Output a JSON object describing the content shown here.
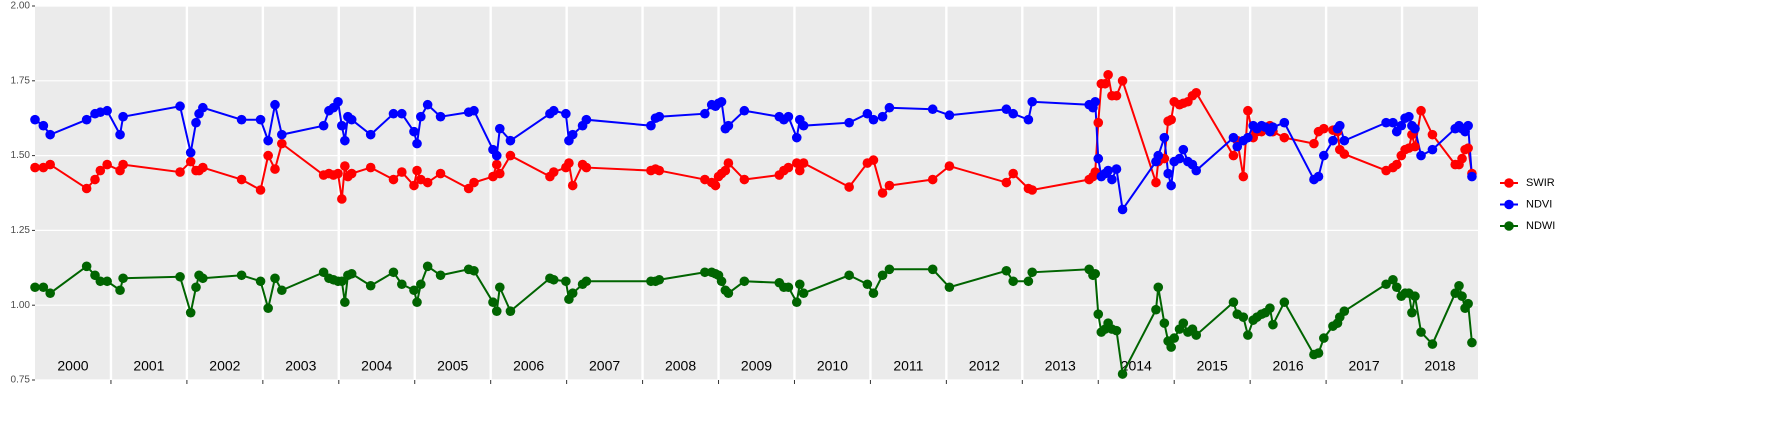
{
  "chart_data": {
    "type": "line",
    "xlim": [
      2000,
      2019
    ],
    "xticks": [
      2001,
      2002,
      2003,
      2004,
      2005,
      2006,
      2007,
      2008,
      2009,
      2010,
      2011,
      2012,
      2013,
      2014,
      2015,
      2016,
      2017,
      2018
    ],
    "year_labels": [
      "2000",
      "2001",
      "2002",
      "2003",
      "2004",
      "2005",
      "2006",
      "2007",
      "2008",
      "2009",
      "2010",
      "2011",
      "2012",
      "2013",
      "2014",
      "2015",
      "2016",
      "2017",
      "2018"
    ],
    "ylim": [
      0.75,
      2.0
    ],
    "yticks": [
      {
        "value": 0.75,
        "label": "0.75"
      },
      {
        "value": 1.0,
        "label": "1.00"
      },
      {
        "value": 1.25,
        "label": "1.25"
      },
      {
        "value": 1.5,
        "label": "1.50"
      },
      {
        "value": 1.75,
        "label": "1.75"
      },
      {
        "value": 2.0,
        "label": "2.00"
      }
    ],
    "grid": true,
    "legend": "right",
    "x": [
      2000.0,
      2000.11,
      2000.2,
      2000.68,
      2000.79,
      2000.86,
      2000.95,
      2001.12,
      2001.16,
      2001.91,
      2002.05,
      2002.12,
      2002.16,
      2002.21,
      2002.72,
      2002.97,
      2003.07,
      2003.16,
      2003.25,
      2003.8,
      2003.87,
      2003.93,
      2003.99,
      2004.04,
      2004.08,
      2004.12,
      2004.17,
      2004.42,
      2004.72,
      2004.83,
      2004.99,
      2005.03,
      2005.08,
      2005.17,
      2005.34,
      2005.71,
      2005.78,
      2006.03,
      2006.08,
      2006.12,
      2006.26,
      2006.78,
      2006.83,
      2006.99,
      2007.03,
      2007.08,
      2007.21,
      2007.26,
      2008.11,
      2008.17,
      2008.22,
      2008.82,
      2008.91,
      2008.96,
      2009.0,
      2009.04,
      2009.09,
      2009.13,
      2009.34,
      2009.8,
      2009.86,
      2009.92,
      2010.03,
      2010.07,
      2010.12,
      2010.72,
      2010.96,
      2011.04,
      2011.16,
      2011.25,
      2011.82,
      2012.04,
      2012.79,
      2012.88,
      2013.08,
      2013.13,
      2013.88,
      2013.93,
      2013.96,
      2014.0,
      2014.04,
      2014.09,
      2014.13,
      2014.18,
      2014.24,
      2014.32,
      2014.76,
      2014.79,
      2014.87,
      2014.92,
      2014.96,
      2015.0,
      2015.07,
      2015.12,
      2015.18,
      2015.24,
      2015.29,
      2015.78,
      2015.83,
      2015.91,
      2015.97,
      2016.04,
      2016.09,
      2016.15,
      2016.2,
      2016.26,
      2016.3,
      2016.45,
      2016.84,
      2016.9,
      2016.97,
      2017.09,
      2017.15,
      2017.18,
      2017.24,
      2017.79,
      2017.88,
      2017.93,
      2017.99,
      2018.04,
      2018.09,
      2018.13,
      2018.17,
      2018.25,
      2018.4,
      2018.7,
      2018.75,
      2018.79,
      2018.83,
      2018.87,
      2018.92
    ],
    "series": [
      {
        "name": "SWIR",
        "color": "#ff0000",
        "values": [
          1.46,
          1.46,
          1.47,
          1.39,
          1.42,
          1.45,
          1.47,
          1.45,
          1.47,
          1.445,
          1.48,
          1.45,
          1.45,
          1.46,
          1.42,
          1.385,
          1.5,
          1.455,
          1.54,
          1.435,
          1.44,
          1.435,
          1.44,
          1.355,
          1.465,
          1.43,
          1.44,
          1.46,
          1.42,
          1.445,
          1.4,
          1.45,
          1.42,
          1.41,
          1.44,
          1.39,
          1.41,
          1.43,
          1.47,
          1.44,
          1.5,
          1.43,
          1.445,
          1.46,
          1.475,
          1.4,
          1.47,
          1.46,
          1.45,
          1.455,
          1.45,
          1.42,
          1.41,
          1.4,
          1.43,
          1.44,
          1.45,
          1.475,
          1.42,
          1.435,
          1.45,
          1.46,
          1.475,
          1.45,
          1.475,
          1.395,
          1.475,
          1.485,
          1.375,
          1.4,
          1.42,
          1.465,
          1.41,
          1.44,
          1.39,
          1.385,
          1.42,
          1.43,
          1.445,
          1.61,
          1.74,
          1.74,
          1.77,
          1.7,
          1.7,
          1.75,
          1.41,
          1.48,
          1.49,
          1.615,
          1.62,
          1.68,
          1.67,
          1.675,
          1.68,
          1.7,
          1.71,
          1.5,
          1.55,
          1.43,
          1.65,
          1.56,
          1.58,
          1.58,
          1.59,
          1.6,
          1.58,
          1.56,
          1.54,
          1.58,
          1.59,
          1.585,
          1.58,
          1.52,
          1.505,
          1.45,
          1.46,
          1.47,
          1.5,
          1.52,
          1.525,
          1.57,
          1.53,
          1.65,
          1.57,
          1.47,
          1.47,
          1.49,
          1.52,
          1.525,
          1.44
        ]
      },
      {
        "name": "NDVI",
        "color": "#0000ff",
        "values": [
          1.62,
          1.6,
          1.57,
          1.62,
          1.64,
          1.645,
          1.65,
          1.57,
          1.63,
          1.665,
          1.51,
          1.61,
          1.64,
          1.66,
          1.62,
          1.62,
          1.55,
          1.67,
          1.57,
          1.6,
          1.65,
          1.66,
          1.68,
          1.6,
          1.55,
          1.63,
          1.62,
          1.57,
          1.64,
          1.64,
          1.58,
          1.54,
          1.63,
          1.67,
          1.63,
          1.645,
          1.65,
          1.52,
          1.5,
          1.59,
          1.55,
          1.64,
          1.65,
          1.64,
          1.55,
          1.57,
          1.6,
          1.62,
          1.6,
          1.625,
          1.63,
          1.64,
          1.67,
          1.665,
          1.675,
          1.68,
          1.59,
          1.6,
          1.65,
          1.63,
          1.62,
          1.63,
          1.56,
          1.62,
          1.6,
          1.61,
          1.64,
          1.62,
          1.63,
          1.66,
          1.655,
          1.635,
          1.655,
          1.64,
          1.62,
          1.68,
          1.67,
          1.66,
          1.68,
          1.49,
          1.43,
          1.44,
          1.45,
          1.42,
          1.455,
          1.32,
          1.48,
          1.5,
          1.56,
          1.44,
          1.4,
          1.48,
          1.49,
          1.52,
          1.48,
          1.47,
          1.45,
          1.56,
          1.53,
          1.55,
          1.56,
          1.6,
          1.59,
          1.6,
          1.595,
          1.58,
          1.595,
          1.61,
          1.42,
          1.43,
          1.5,
          1.55,
          1.59,
          1.6,
          1.55,
          1.61,
          1.61,
          1.58,
          1.6,
          1.625,
          1.63,
          1.6,
          1.59,
          1.5,
          1.52,
          1.59,
          1.6,
          1.59,
          1.58,
          1.6,
          1.43
        ]
      },
      {
        "name": "NDWI",
        "color": "#006400",
        "values": [
          1.06,
          1.06,
          1.04,
          1.13,
          1.1,
          1.08,
          1.08,
          1.05,
          1.09,
          1.095,
          0.975,
          1.06,
          1.1,
          1.09,
          1.1,
          1.08,
          0.99,
          1.09,
          1.05,
          1.11,
          1.09,
          1.085,
          1.08,
          1.08,
          1.01,
          1.1,
          1.105,
          1.065,
          1.11,
          1.07,
          1.05,
          1.01,
          1.07,
          1.13,
          1.1,
          1.12,
          1.115,
          1.01,
          0.98,
          1.06,
          0.98,
          1.09,
          1.085,
          1.08,
          1.02,
          1.04,
          1.07,
          1.08,
          1.08,
          1.08,
          1.085,
          1.11,
          1.11,
          1.105,
          1.1,
          1.08,
          1.05,
          1.04,
          1.08,
          1.075,
          1.06,
          1.06,
          1.01,
          1.07,
          1.04,
          1.1,
          1.07,
          1.04,
          1.1,
          1.12,
          1.12,
          1.06,
          1.115,
          1.08,
          1.08,
          1.11,
          1.12,
          1.1,
          1.105,
          0.97,
          0.91,
          0.92,
          0.94,
          0.92,
          0.915,
          0.77,
          0.985,
          1.06,
          0.94,
          0.88,
          0.86,
          0.89,
          0.92,
          0.94,
          0.91,
          0.92,
          0.9,
          1.01,
          0.97,
          0.96,
          0.9,
          0.95,
          0.96,
          0.97,
          0.975,
          0.99,
          0.935,
          1.01,
          0.835,
          0.84,
          0.89,
          0.93,
          0.94,
          0.96,
          0.98,
          1.07,
          1.085,
          1.06,
          1.03,
          1.04,
          1.04,
          0.975,
          1.03,
          0.91,
          0.87,
          1.04,
          1.065,
          1.03,
          0.99,
          1.005,
          0.875
        ]
      }
    ]
  }
}
